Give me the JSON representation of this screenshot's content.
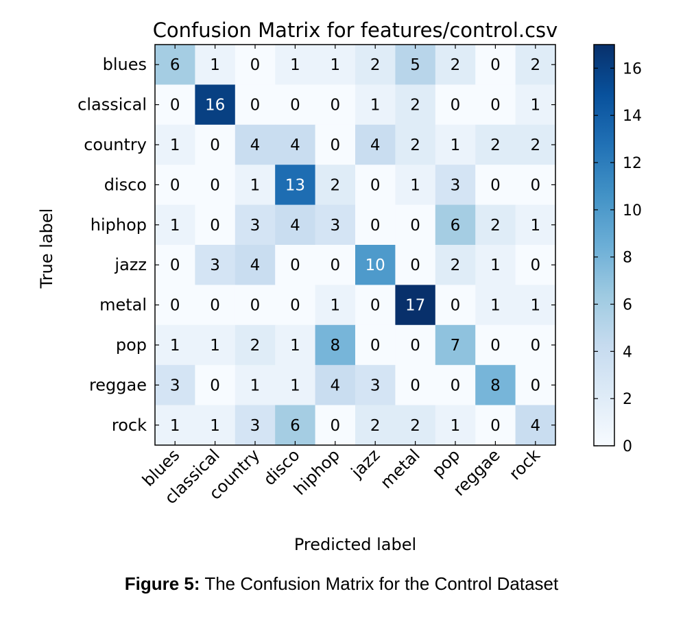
{
  "chart_data": {
    "type": "heatmap",
    "title": "Confusion Matrix for features/control.csv",
    "xlabel": "Predicted label",
    "ylabel": "True label",
    "x_categories": [
      "blues",
      "classical",
      "country",
      "disco",
      "hiphop",
      "jazz",
      "metal",
      "pop",
      "reggae",
      "rock"
    ],
    "y_categories": [
      "blues",
      "classical",
      "country",
      "disco",
      "hiphop",
      "jazz",
      "metal",
      "pop",
      "reggae",
      "rock"
    ],
    "values": [
      [
        6,
        1,
        0,
        1,
        1,
        2,
        5,
        2,
        0,
        2
      ],
      [
        0,
        16,
        0,
        0,
        0,
        1,
        2,
        0,
        0,
        1
      ],
      [
        1,
        0,
        4,
        4,
        0,
        4,
        2,
        1,
        2,
        2
      ],
      [
        0,
        0,
        1,
        13,
        2,
        0,
        1,
        3,
        0,
        0
      ],
      [
        1,
        0,
        3,
        4,
        3,
        0,
        0,
        6,
        2,
        1
      ],
      [
        0,
        3,
        4,
        0,
        0,
        10,
        0,
        2,
        1,
        0
      ],
      [
        0,
        0,
        0,
        0,
        1,
        0,
        17,
        0,
        1,
        1
      ],
      [
        1,
        1,
        2,
        1,
        8,
        0,
        0,
        7,
        0,
        0
      ],
      [
        3,
        0,
        1,
        1,
        4,
        3,
        0,
        0,
        8,
        0
      ],
      [
        1,
        1,
        3,
        6,
        0,
        2,
        2,
        1,
        0,
        4
      ]
    ],
    "color_range": [
      0,
      17
    ],
    "colormap": "Blues",
    "colorbar_ticks": [
      0,
      2,
      4,
      6,
      8,
      10,
      12,
      14,
      16
    ],
    "colors": {
      "low": "#f7fbff",
      "high": "#08306b",
      "light_text": "#ffffff",
      "dark_text": "#000000"
    }
  },
  "caption": {
    "label": "Figure 5:",
    "text": " The Confusion Matrix for the Control Dataset"
  }
}
